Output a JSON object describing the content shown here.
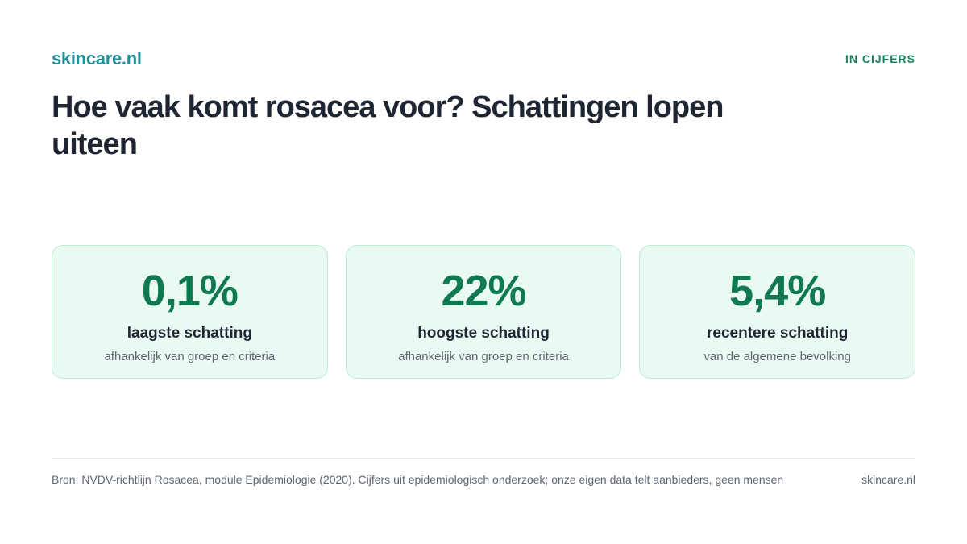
{
  "header": {
    "logo": "skincare.nl",
    "tag": "IN CIJFERS"
  },
  "title": "Hoe vaak komt rosacea voor? Schattingen lopen uiteen",
  "cards": [
    {
      "value": "0,1%",
      "label": "laagste schatting",
      "sub": "afhankelijk van groep en criteria"
    },
    {
      "value": "22%",
      "label": "hoogste schatting",
      "sub": "afhankelijk van groep en criteria"
    },
    {
      "value": "5,4%",
      "label": "recentere schatting",
      "sub": "van de algemene bevolking"
    }
  ],
  "footer": {
    "source": "Bron: NVDV-richtlijn Rosacea, module Epidemiologie (2020). Cijfers uit epidemiologisch onderzoek; onze eigen data telt aanbieders, geen mensen",
    "brand": "skincare.nl"
  },
  "colors": {
    "brand": "#1f8f98",
    "accent": "#0f7a50",
    "card_bg": "#e9faf3"
  }
}
